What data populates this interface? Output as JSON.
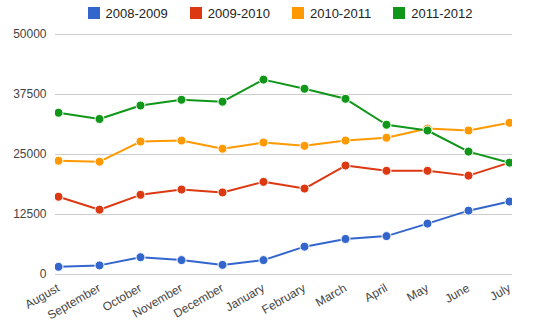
{
  "chart_data": {
    "type": "line",
    "categories": [
      "August",
      "September",
      "October",
      "November",
      "December",
      "January",
      "February",
      "March",
      "April",
      "May",
      "June",
      "July"
    ],
    "series": [
      {
        "name": "2008-2009",
        "color": "#3366cc",
        "values": [
          1600,
          1900,
          3600,
          3000,
          2000,
          3000,
          5800,
          7400,
          8000,
          10600,
          13300,
          15200
        ]
      },
      {
        "name": "2009-2010",
        "color": "#dc3912",
        "values": [
          16200,
          13500,
          16600,
          17700,
          17100,
          19300,
          17900,
          22700,
          21600,
          21600,
          20600,
          23300
        ]
      },
      {
        "name": "2010-2011",
        "color": "#ff9900",
        "values": [
          23700,
          23500,
          27700,
          27900,
          26200,
          27500,
          26800,
          27900,
          28500,
          30400,
          30000,
          31600
        ]
      },
      {
        "name": "2011-2012",
        "color": "#109618",
        "values": [
          33700,
          32400,
          35200,
          36400,
          36000,
          40600,
          38700,
          36600,
          31200,
          30000,
          25600,
          23300
        ]
      }
    ],
    "ylim": [
      0,
      50000
    ],
    "yticks": [
      0,
      12500,
      25000,
      37500,
      50000
    ],
    "grid": true,
    "legend": "top",
    "marker": "circle"
  }
}
